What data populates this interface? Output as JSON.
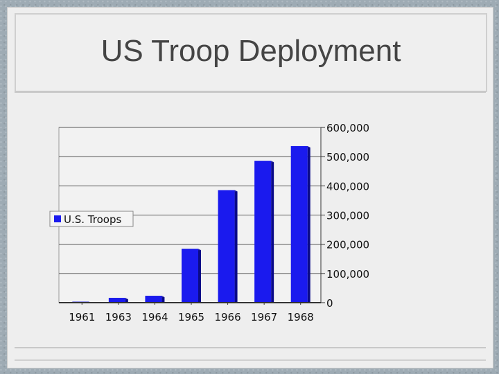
{
  "slide": {
    "title": "US Troop Deployment"
  },
  "chart_data": {
    "type": "bar",
    "categories": [
      "1961",
      "1963",
      "1964",
      "1965",
      "1966",
      "1967",
      "1968"
    ],
    "series": [
      {
        "name": "U.S. Troops",
        "values": [
          3200,
          16300,
          23300,
          184300,
          385300,
          485600,
          536100
        ],
        "color": "#1a1aee"
      }
    ],
    "ylim": [
      0,
      600000
    ],
    "yticks": [
      0,
      100000,
      200000,
      300000,
      400000,
      500000,
      600000
    ],
    "ytick_labels": [
      "0",
      "100,000",
      "200,000",
      "300,000",
      "400,000",
      "500,000",
      "600,000"
    ],
    "y_axis_side": "right",
    "grid": true,
    "legend": "left"
  }
}
